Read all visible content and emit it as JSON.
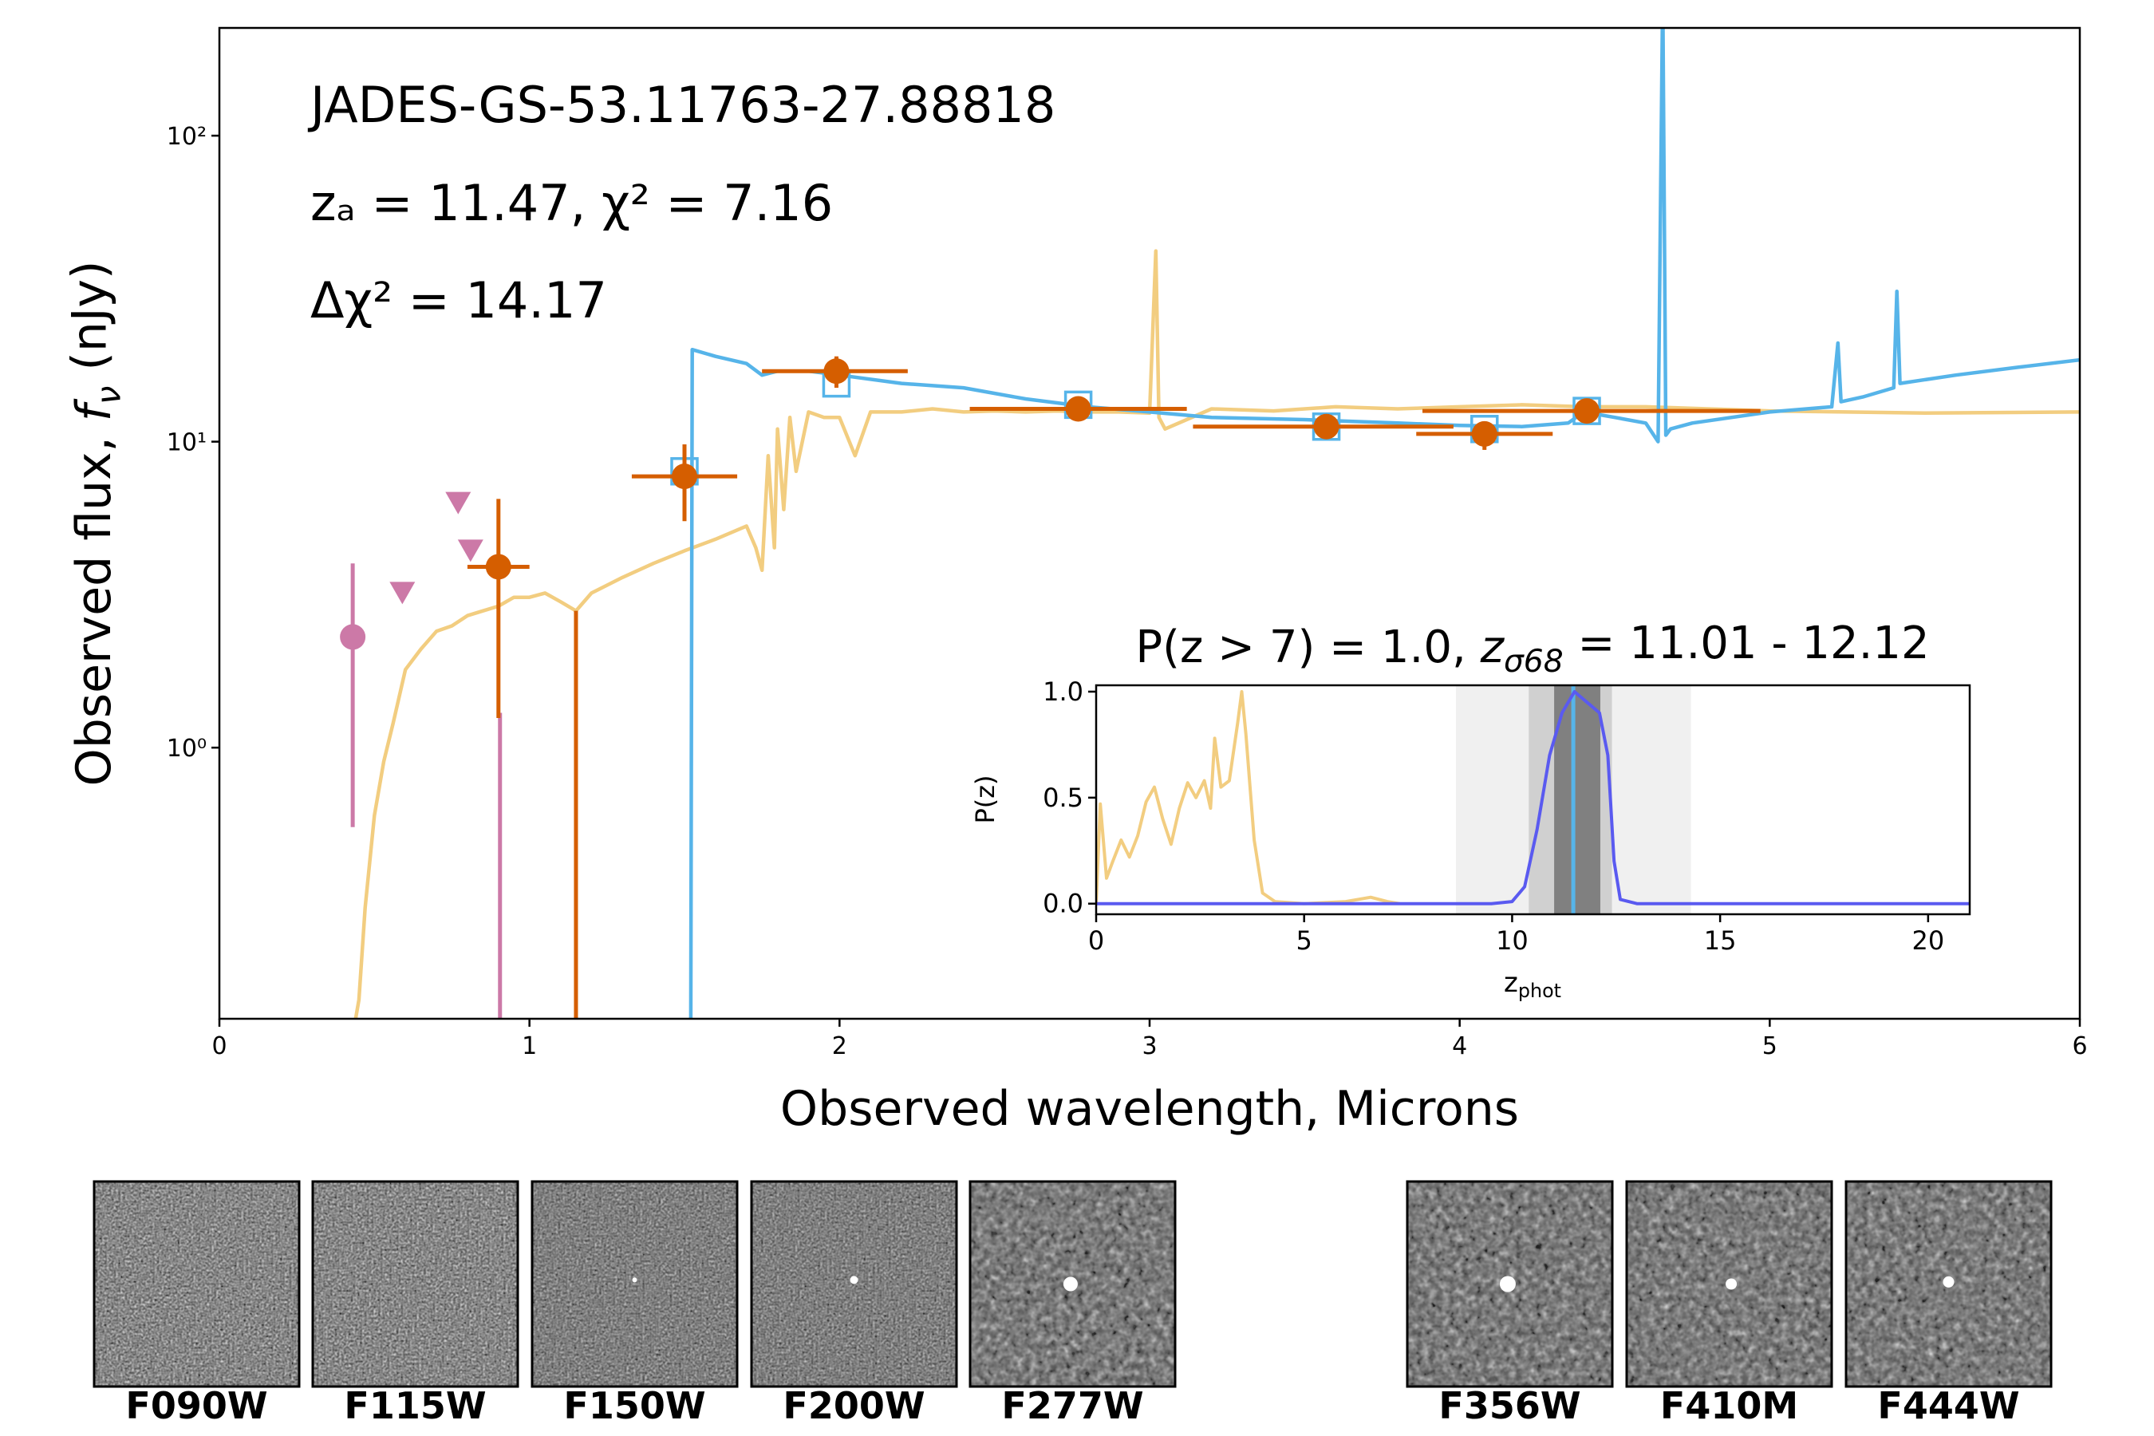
{
  "chart_data": [
    {
      "type": "line",
      "annotations": [
        "JADES-GS-53.11763-27.88818",
        "zₐ = 11.47, χ² = 7.16",
        "Δχ² = 14.17"
      ],
      "xlabel": "Observed wavelength, Microns",
      "ylabel": [
        "Observed flux, ",
        "f",
        "ν",
        " (nJy)"
      ],
      "xlim": [
        0,
        6
      ],
      "xticks": [
        0,
        1,
        2,
        3,
        4,
        5,
        6
      ],
      "ylim": [
        0.13,
        225
      ],
      "yscale": "log",
      "yticks": [
        {
          "value": 1,
          "label": "10⁰"
        },
        {
          "value": 10,
          "label": "10¹"
        },
        {
          "value": 100,
          "label": "10²"
        }
      ],
      "series": [
        {
          "style": "line",
          "color": "#f2cd80",
          "x": [
            0.42,
            0.45,
            0.47,
            0.5,
            0.53,
            0.56,
            0.6,
            0.65,
            0.7,
            0.75,
            0.8,
            0.85,
            0.9,
            0.95,
            1.0,
            1.05,
            1.1,
            1.15,
            1.2,
            1.3,
            1.4,
            1.5,
            1.6,
            1.7,
            1.73,
            1.75,
            1.77,
            1.79,
            1.8,
            1.82,
            1.84,
            1.86,
            1.9,
            1.95,
            2.0,
            2.05,
            2.1,
            2.2,
            2.3,
            2.4,
            2.5,
            2.6,
            2.7,
            2.8,
            2.9,
            3.0,
            3.02,
            3.03,
            3.05,
            3.2,
            3.4,
            3.6,
            3.8,
            4.0,
            4.2,
            4.4,
            4.6,
            4.8,
            5.0,
            5.5,
            6.0
          ],
          "values": [
            0.1,
            0.15,
            0.3,
            0.6,
            0.9,
            1.2,
            1.8,
            2.1,
            2.4,
            2.5,
            2.7,
            2.8,
            2.9,
            3.1,
            3.1,
            3.2,
            3.0,
            2.8,
            3.2,
            3.6,
            4.0,
            4.4,
            4.8,
            5.3,
            4.5,
            3.8,
            9,
            4.5,
            11,
            6,
            12,
            8,
            12.5,
            12,
            12,
            9,
            12.5,
            12.5,
            12.8,
            12.5,
            12.6,
            12.5,
            12.6,
            12.5,
            12.5,
            12.4,
            42,
            12,
            11,
            12.8,
            12.6,
            13,
            12.8,
            13,
            13.2,
            13,
            13,
            12.8,
            12.6,
            12.4,
            12.5
          ]
        },
        {
          "style": "line",
          "color": "#56b4e9",
          "x": [
            1.52,
            1.525,
            1.6,
            1.7,
            1.75,
            1.8,
            1.9,
            2.0,
            2.2,
            2.4,
            2.6,
            2.8,
            3.0,
            3.2,
            3.5,
            3.8,
            4.0,
            4.2,
            4.35,
            4.4,
            4.5,
            4.6,
            4.64,
            4.655,
            4.665,
            4.68,
            4.75,
            5.0,
            5.2,
            5.22,
            5.23,
            5.3,
            5.4,
            5.41,
            5.42,
            5.6,
            5.8,
            6.0
          ],
          "values": [
            0.1,
            20,
            19,
            18,
            16.5,
            17,
            17,
            16.5,
            15.5,
            15,
            13.8,
            13,
            12.5,
            12,
            11.8,
            11.5,
            11.3,
            11.2,
            11.5,
            12.5,
            12,
            11.5,
            10,
            300,
            10.5,
            11,
            11.5,
            12.5,
            13,
            21,
            13.5,
            14,
            15,
            31,
            15.5,
            16.5,
            17.5,
            18.5
          ]
        },
        {
          "style": "squares",
          "color": "#56b4e9",
          "x": [
            1.5,
            1.99,
            2.77,
            3.57,
            4.08,
            4.41
          ],
          "values": [
            8.0,
            15.5,
            13.2,
            11.2,
            11.0,
            12.6
          ]
        },
        {
          "style": "errorbar",
          "color": "#cc79a7",
          "x": [
            0.43,
            0.905
          ],
          "values": [
            2.3,
            null
          ],
          "x_low": [
            null,
            null
          ],
          "x_high": [
            null,
            null
          ],
          "y_low": [
            0.55,
            null
          ],
          "y_high": [
            4.0,
            1.3
          ]
        },
        {
          "style": "triangles_down",
          "color": "#cc79a7",
          "x": [
            0.59,
            0.77,
            0.81
          ],
          "values": [
            3.2,
            6.3,
            4.4
          ]
        },
        {
          "style": "errorbar",
          "color": "#d55e00",
          "x": [
            0.9,
            1.15,
            1.5,
            1.99,
            2.77,
            3.57,
            4.08,
            4.41
          ],
          "values": [
            3.9,
            null,
            7.7,
            17,
            12.8,
            11.2,
            10.6,
            12.6
          ],
          "x_low": [
            0.8,
            null,
            1.33,
            1.75,
            2.42,
            3.14,
            3.86,
            3.88
          ],
          "x_high": [
            1.0,
            null,
            1.67,
            2.22,
            3.12,
            3.98,
            4.3,
            4.97
          ],
          "y_low": [
            1.25,
            null,
            5.5,
            15,
            11.8,
            10.5,
            9.4,
            11.8
          ],
          "y_high": [
            6.5,
            2.8,
            9.8,
            19,
            13.6,
            12,
            11.6,
            13.4
          ]
        }
      ]
    },
    {
      "type": "line",
      "title": [
        "P(z > 7) = 1.0, ",
        "z",
        "σ68",
        " = 11.01 - 12.12"
      ],
      "xlabel": [
        "z",
        "phot"
      ],
      "ylabel": "P(z)",
      "xlim": [
        0,
        21
      ],
      "xticks": [
        0,
        5,
        10,
        15,
        20
      ],
      "ylim": [
        -0.05,
        1.03
      ],
      "yticks": [
        {
          "value": 0,
          "label": "0.0"
        },
        0.5,
        {
          "value": 1,
          "label": "1.0"
        }
      ],
      "bands": [
        {
          "range": [
            8.65,
            14.3
          ],
          "color": "#f0f0f0"
        },
        {
          "range": [
            10.4,
            12.4
          ],
          "color": "#d0d0d0"
        },
        {
          "range": [
            11.01,
            12.12
          ],
          "color": "#808080"
        }
      ],
      "vlines": [
        {
          "x": 11.47,
          "color": "#56b4e9"
        }
      ],
      "series": [
        {
          "style": "line",
          "color": "#f2cd80",
          "x": [
            0,
            0.1,
            0.25,
            0.4,
            0.6,
            0.8,
            1.0,
            1.2,
            1.4,
            1.6,
            1.8,
            2.0,
            2.2,
            2.4,
            2.6,
            2.75,
            2.85,
            3.0,
            3.2,
            3.4,
            3.5,
            3.6,
            3.8,
            4.0,
            4.3,
            5.0,
            6.0,
            6.6,
            7.0,
            7.3
          ],
          "values": [
            0,
            0.47,
            0.12,
            0.2,
            0.3,
            0.22,
            0.32,
            0.48,
            0.55,
            0.4,
            0.28,
            0.45,
            0.57,
            0.5,
            0.58,
            0.45,
            0.78,
            0.55,
            0.58,
            0.85,
            1.0,
            0.8,
            0.3,
            0.05,
            0.01,
            0,
            0.01,
            0.03,
            0.01,
            0
          ]
        },
        {
          "style": "line",
          "color": "#5a5af0",
          "x": [
            0,
            9.5,
            10.0,
            10.3,
            10.6,
            10.9,
            11.2,
            11.5,
            11.8,
            12.1,
            12.3,
            12.45,
            12.6,
            13,
            21
          ],
          "values": [
            0,
            0,
            0.01,
            0.08,
            0.35,
            0.7,
            0.9,
            1.0,
            0.95,
            0.9,
            0.7,
            0.2,
            0.02,
            0,
            0
          ]
        }
      ]
    }
  ],
  "cutouts": {
    "labels": [
      "F090W",
      "F115W",
      "F150W",
      "F200W",
      "F277W",
      "F356W",
      "F410M",
      "F444W"
    ]
  }
}
